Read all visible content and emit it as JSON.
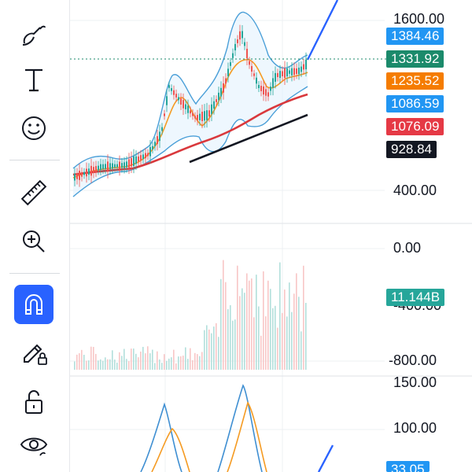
{
  "toolbar": {
    "items": [
      {
        "name": "brush-icon"
      },
      {
        "name": "text-icon"
      },
      {
        "name": "emoji-icon"
      },
      {
        "name": "ruler-icon"
      },
      {
        "name": "zoom-in-icon"
      },
      {
        "name": "magnet-icon",
        "active": true
      },
      {
        "name": "pencil-lock-icon"
      },
      {
        "name": "unlock-icon"
      },
      {
        "name": "eye-icon"
      }
    ]
  },
  "price_axis": {
    "ticks": [
      "1600.00",
      "400.00",
      "0.00",
      "-800.00"
    ],
    "partial_tick": "-400.00"
  },
  "price_tags": [
    {
      "label": "1384.46",
      "color": "#2196f3"
    },
    {
      "label": "1331.92",
      "color": "#1b8a6b"
    },
    {
      "label": "1235.52",
      "color": "#f57c00"
    },
    {
      "label": "1086.59",
      "color": "#2196f3"
    },
    {
      "label": "1076.09",
      "color": "#e53945"
    },
    {
      "label": "928.84",
      "color": "#131722"
    }
  ],
  "volume_tag": {
    "label": "11.144B",
    "color": "#26a69a"
  },
  "oscillator_axis": {
    "ticks": [
      "150.00",
      "100.00"
    ],
    "partial_tag": "33.05",
    "partial_tag_color": "#2196f3"
  }
}
